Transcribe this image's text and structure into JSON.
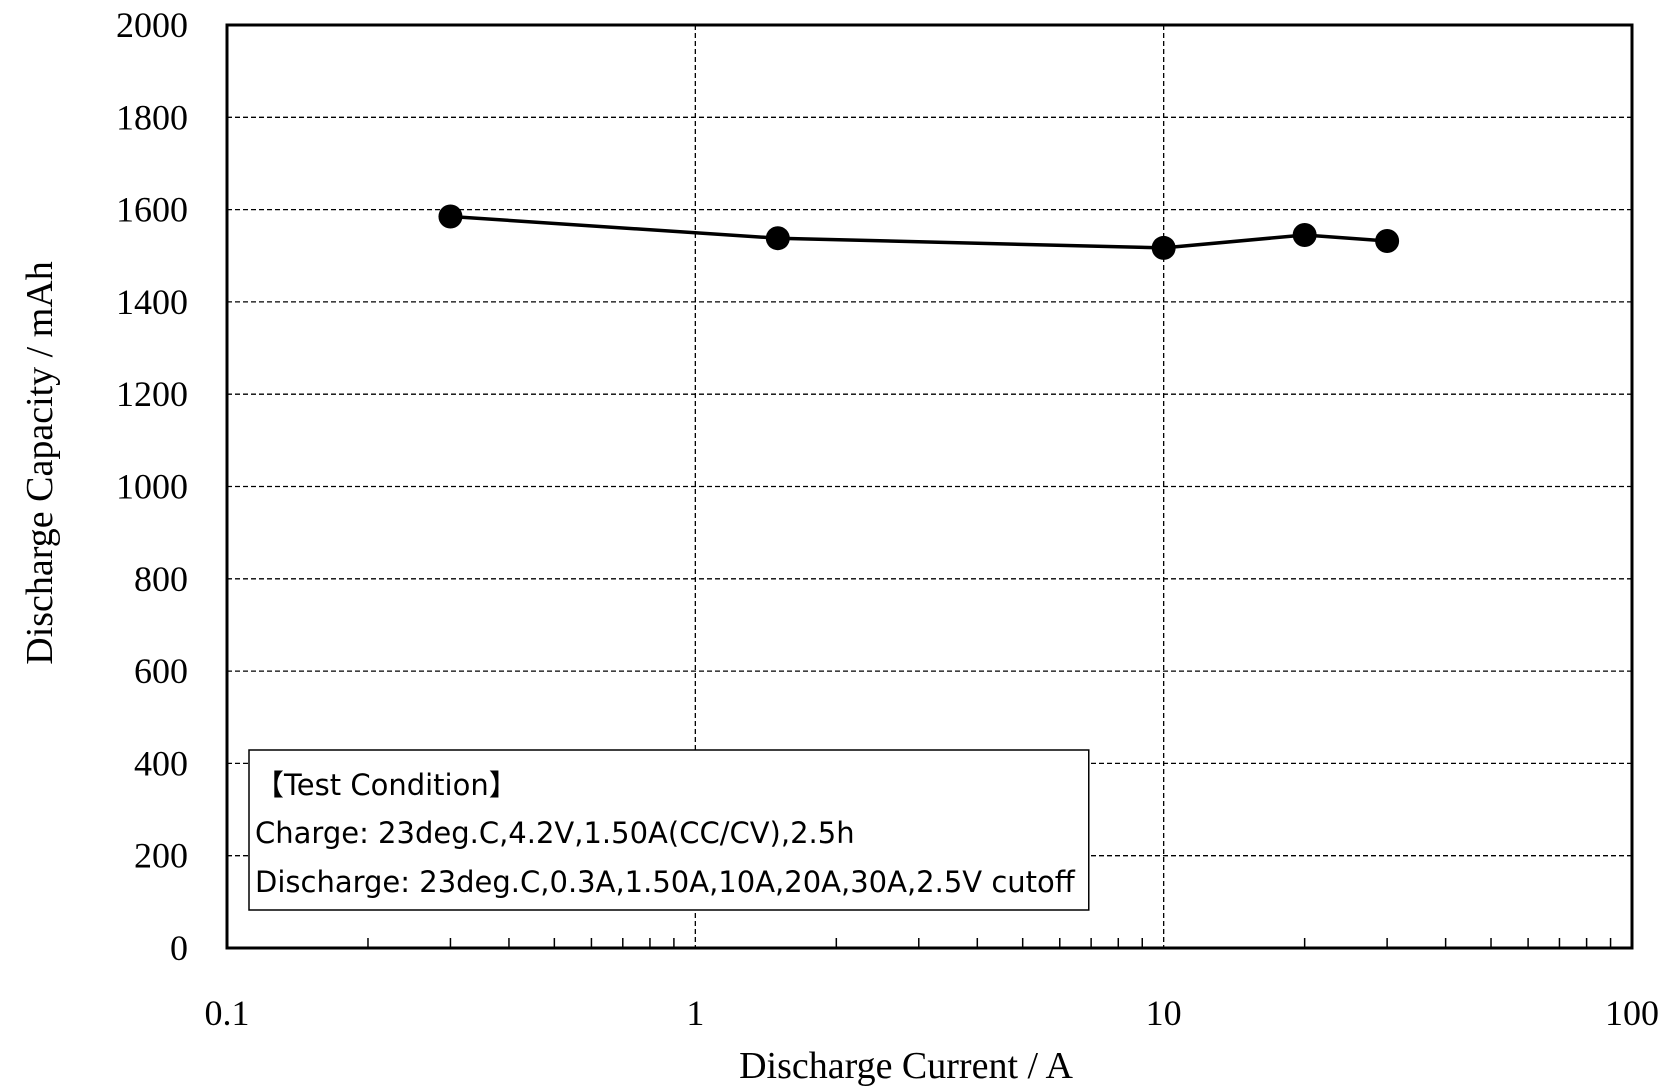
{
  "chart_data": {
    "type": "line",
    "title": "",
    "xlabel": "Discharge Current / A",
    "ylabel": "Discharge Capacity / mAh",
    "x_scale": "log",
    "xlim": [
      0.1,
      100
    ],
    "ylim": [
      0,
      2000
    ],
    "x_ticks": [
      "0.1",
      "1",
      "10",
      "100"
    ],
    "y_ticks": [
      "0",
      "200",
      "400",
      "600",
      "800",
      "1000",
      "1200",
      "1400",
      "1600",
      "1800",
      "2000"
    ],
    "grid": true,
    "grid_style": "dashed",
    "legend": "none",
    "series": [
      {
        "color": "#000000",
        "marker": "circle",
        "x": [
          0.3,
          1.5,
          10,
          20,
          30
        ],
        "y": [
          1585,
          1538,
          1517,
          1545,
          1532
        ]
      }
    ],
    "annotation": {
      "lines": [
        "【Test  Condition】",
        "Charge: 23deg.C,4.2V,1.50A(CC/CV),2.5h",
        "Discharge: 23deg.C,0.3A,1.50A,10A,20A,30A,2.5V cutoff"
      ],
      "placement": "bottom-left"
    }
  }
}
